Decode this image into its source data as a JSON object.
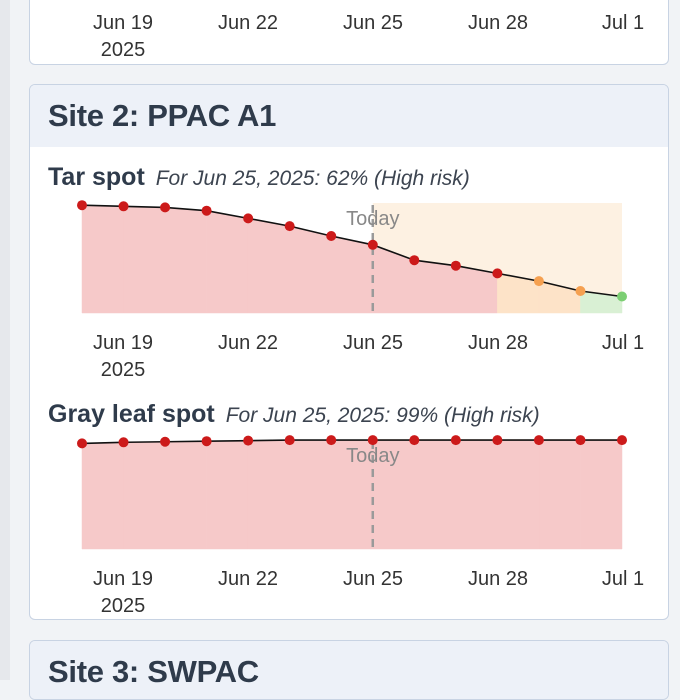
{
  "sites": [
    {
      "name": "",
      "axis": {
        "ticks": [
          "Jun 19",
          "Jun 22",
          "Jun 25",
          "Jun 28",
          "Jul 1"
        ],
        "year": "2025"
      }
    },
    {
      "name": "Site 2: PPAC A1",
      "charts": [
        {
          "disease": "Tar spot",
          "summary": "For Jun 25, 2025: 62% (High risk)",
          "today_label": "Today",
          "axis": {
            "ticks": [
              "Jun 19",
              "Jun 22",
              "Jun 25",
              "Jun 28",
              "Jul 1"
            ],
            "year": "2025"
          }
        },
        {
          "disease": "Gray leaf spot",
          "summary": "For Jun 25, 2025: 99% (High risk)",
          "today_label": "Today",
          "axis": {
            "ticks": [
              "Jun 19",
              "Jun 22",
              "Jun 25",
              "Jun 28",
              "Jul 1"
            ],
            "year": "2025"
          }
        }
      ]
    },
    {
      "name": "Site 3: SWPAC"
    }
  ],
  "colors": {
    "high": "#cc1a1a",
    "medium": "#f5a050",
    "low": "#7ccf73",
    "high_fill": "#f6c9c9",
    "forecast_fill": "#fdf1e2",
    "line": "#111111"
  },
  "chart_data": [
    {
      "type": "line",
      "title": "",
      "x": [
        "2025-06-18",
        "2025-06-19",
        "2025-06-20",
        "2025-06-21",
        "2025-06-22",
        "2025-06-23",
        "2025-06-24",
        "2025-06-25",
        "2025-06-26",
        "2025-06-27",
        "2025-06-28",
        "2025-06-29",
        "2025-06-30",
        "2025-07-01"
      ],
      "y": [
        98,
        97,
        96,
        93,
        86,
        79,
        70,
        62,
        48,
        43,
        36,
        29,
        20,
        15
      ],
      "risk": [
        "high",
        "high",
        "high",
        "high",
        "high",
        "high",
        "high",
        "high",
        "high",
        "high",
        "high",
        "medium",
        "medium",
        "low"
      ],
      "xlim": [
        "2025-06-18",
        "2025-07-01"
      ],
      "ylim": [
        0,
        100
      ],
      "today": "2025-06-25",
      "grid": false
    },
    {
      "type": "line",
      "title": "",
      "x": [
        "2025-06-18",
        "2025-06-19",
        "2025-06-20",
        "2025-06-21",
        "2025-06-22",
        "2025-06-23",
        "2025-06-24",
        "2025-06-25",
        "2025-06-26",
        "2025-06-27",
        "2025-06-28",
        "2025-06-29",
        "2025-06-30",
        "2025-07-01"
      ],
      "y": [
        96,
        97,
        97.5,
        98,
        98.5,
        99,
        99,
        99,
        99,
        99,
        99,
        99,
        99,
        99
      ],
      "risk": [
        "high",
        "high",
        "high",
        "high",
        "high",
        "high",
        "high",
        "high",
        "high",
        "high",
        "high",
        "high",
        "high",
        "high"
      ],
      "xlim": [
        "2025-06-18",
        "2025-07-01"
      ],
      "ylim": [
        0,
        100
      ],
      "today": "2025-06-25",
      "grid": false
    }
  ]
}
